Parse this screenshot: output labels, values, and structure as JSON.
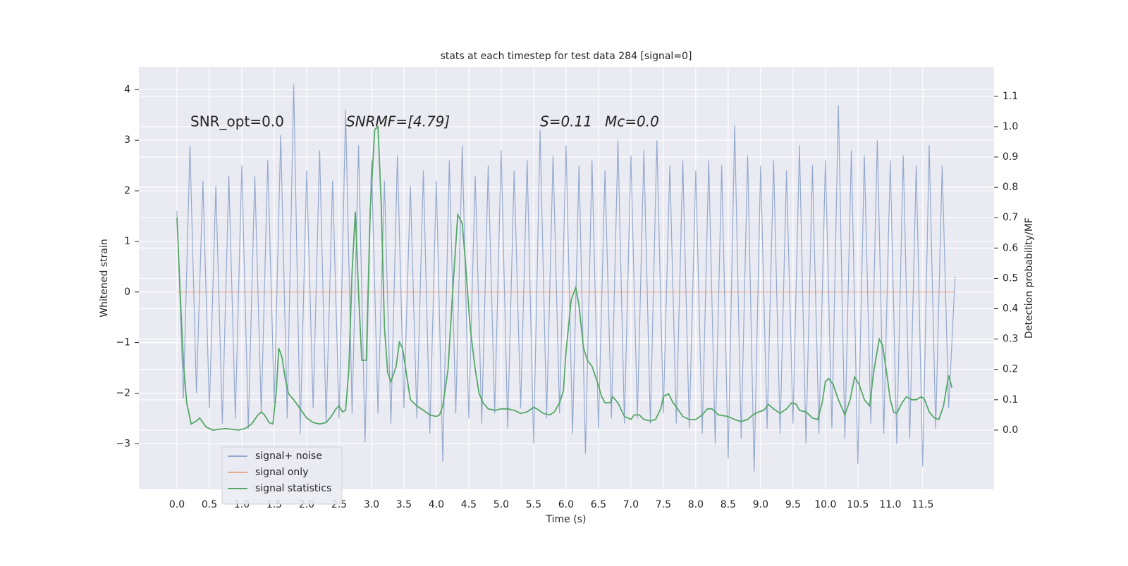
{
  "chart_data": {
    "type": "line",
    "title": "stats at each timestep for test data 284 [signal=0]",
    "xlabel": "Time (s)",
    "ylabel": "Whitened strain",
    "y2label": "Detection probability/MF",
    "annotations": [
      "SNR_opt=0.0",
      "SNRMF=[4.79]",
      "S=0.11",
      "Mc=0.0"
    ],
    "xlim": [
      -0.587,
      12.6
    ],
    "ylim": [
      -3.9,
      4.45
    ],
    "y2lim": [
      -0.195,
      1.197
    ],
    "xticks": [
      {
        "value": 0,
        "label": "0.0"
      },
      {
        "value": 0.5,
        "label": "0.5"
      },
      {
        "value": 1,
        "label": "1.0"
      },
      {
        "value": 1.5,
        "label": "1.5"
      },
      {
        "value": 2,
        "label": "2.0"
      },
      {
        "value": 2.5,
        "label": "2.5"
      },
      {
        "value": 3,
        "label": "3.0"
      },
      {
        "value": 3.5,
        "label": "3.5"
      },
      {
        "value": 4,
        "label": "4.0"
      },
      {
        "value": 4.5,
        "label": "4.5"
      },
      {
        "value": 5,
        "label": "5.0"
      },
      {
        "value": 5.5,
        "label": "5.5"
      },
      {
        "value": 6,
        "label": "6.0"
      },
      {
        "value": 6.5,
        "label": "6.5"
      },
      {
        "value": 7,
        "label": "7.0"
      },
      {
        "value": 7.5,
        "label": "7.5"
      },
      {
        "value": 8,
        "label": "8.0"
      },
      {
        "value": 8.5,
        "label": "8.5"
      },
      {
        "value": 9,
        "label": "9.0"
      },
      {
        "value": 9.5,
        "label": "9.5"
      },
      {
        "value": 10,
        "label": "10.0"
      },
      {
        "value": 10.5,
        "label": "10.5"
      },
      {
        "value": 11,
        "label": "11.0"
      },
      {
        "value": 11.5,
        "label": "11.5"
      }
    ],
    "yticks": [
      {
        "value": -3,
        "label": "−3"
      },
      {
        "value": -2,
        "label": "−2"
      },
      {
        "value": -1,
        "label": "−1"
      },
      0,
      1,
      2,
      3,
      4
    ],
    "y2ticks": [
      {
        "value": 0,
        "label": "0.0"
      },
      {
        "value": 0.1,
        "label": "0.1"
      },
      {
        "value": 0.2,
        "label": "0.2"
      },
      {
        "value": 0.3,
        "label": "0.3"
      },
      {
        "value": 0.4,
        "label": "0.4"
      },
      {
        "value": 0.5,
        "label": "0.5"
      },
      {
        "value": 0.6,
        "label": "0.6"
      },
      {
        "value": 0.7,
        "label": "0.7"
      },
      {
        "value": 0.8,
        "label": "0.8"
      },
      {
        "value": 0.9,
        "label": "0.9"
      },
      {
        "value": 1.0,
        "label": "1.0"
      },
      {
        "value": 1.1,
        "label": "1.1"
      }
    ],
    "grid": true,
    "legend_loc": "lower left",
    "series": [
      {
        "name": "signal+ noise",
        "color": "#4c72b0",
        "x": [
          0,
          0.1,
          0.2,
          0.3,
          0.4,
          0.5,
          0.6,
          0.7,
          0.8,
          0.9,
          1,
          1.1,
          1.2,
          1.3,
          1.4,
          1.5,
          1.6,
          1.7,
          1.8,
          1.9,
          2,
          2.1,
          2.2,
          2.3,
          2.4,
          2.5,
          2.6,
          2.7,
          2.8,
          2.9,
          3,
          3.1,
          3.2,
          3.3,
          3.4,
          3.5,
          3.6,
          3.7,
          3.8,
          3.9,
          4,
          4.1,
          4.2,
          4.3,
          4.4,
          4.5,
          4.6,
          4.7,
          4.8,
          4.9,
          5,
          5.1,
          5.2,
          5.3,
          5.4,
          5.5,
          5.6,
          5.7,
          5.8,
          5.9,
          6,
          6.1,
          6.2,
          6.3,
          6.4,
          6.5,
          6.6,
          6.7,
          6.8,
          6.9,
          7,
          7.1,
          7.2,
          7.3,
          7.4,
          7.5,
          7.6,
          7.7,
          7.8,
          7.9,
          8,
          8.1,
          8.2,
          8.3,
          8.4,
          8.5,
          8.6,
          8.7,
          8.8,
          8.9,
          9,
          9.1,
          9.2,
          9.3,
          9.4,
          9.5,
          9.6,
          9.7,
          9.8,
          9.9,
          10,
          10.1,
          10.2,
          10.3,
          10.4,
          10.5,
          10.6,
          10.7,
          10.8,
          10.9,
          11,
          11.1,
          11.2,
          11.3,
          11.4,
          11.5,
          11.6,
          11.7,
          11.8,
          11.9,
          12
        ],
        "values": [
          1.6,
          -2.1,
          2.9,
          -2.0,
          2.2,
          -2.3,
          2.1,
          -2.6,
          2.3,
          -2.5,
          2.5,
          -2.7,
          2.3,
          -2.4,
          2.6,
          -2.2,
          3.1,
          -2.5,
          4.1,
          -2.8,
          2.4,
          -2.3,
          2.8,
          -2.6,
          2.2,
          -2.5,
          3.6,
          -2.4,
          2.9,
          -2.97,
          2.6,
          -2.4,
          2.2,
          -2.6,
          2.7,
          -2.3,
          2.1,
          -2.5,
          2.4,
          -2.8,
          2.2,
          -3.35,
          2.6,
          -2.4,
          2.9,
          -2.5,
          2.3,
          -2.6,
          2.5,
          -2.4,
          2.8,
          -2.7,
          2.4,
          -2.3,
          2.6,
          -3.0,
          3.2,
          -2.5,
          2.7,
          -2.4,
          2.9,
          -2.8,
          2.5,
          -3.2,
          2.6,
          -2.7,
          2.4,
          -2.5,
          3.0,
          -2.6,
          2.7,
          -2.5,
          2.8,
          -2.6,
          3.0,
          -2.4,
          2.5,
          -2.6,
          2.6,
          -2.7,
          2.4,
          -2.8,
          2.6,
          -3.0,
          2.5,
          -3.3,
          3.3,
          -2.9,
          2.7,
          -3.55,
          2.5,
          -2.7,
          2.6,
          -2.8,
          2.4,
          -2.6,
          2.9,
          -3.0,
          2.5,
          -2.8,
          2.6,
          -2.7,
          3.7,
          -2.9,
          2.8,
          -3.4,
          2.7,
          -2.6,
          3.0,
          -2.8,
          2.6,
          -3.0,
          2.7,
          -2.9,
          2.5,
          -3.45,
          2.9,
          -2.7,
          2.5,
          -2.3,
          0.3
        ]
      },
      {
        "name": "signal only",
        "color": "#dd8452",
        "x": [
          0,
          12
        ],
        "values": [
          0,
          0
        ]
      },
      {
        "name": "signal statistics",
        "color": "#55a868",
        "axis": "y2",
        "x": [
          0,
          0.05,
          0.1,
          0.15,
          0.22,
          0.3,
          0.35,
          0.45,
          0.55,
          0.75,
          0.95,
          1.05,
          1.15,
          1.25,
          1.3,
          1.35,
          1.42,
          1.48,
          1.53,
          1.57,
          1.62,
          1.67,
          1.72,
          1.8,
          1.9,
          2.0,
          2.1,
          2.2,
          2.3,
          2.38,
          2.45,
          2.5,
          2.55,
          2.6,
          2.65,
          2.7,
          2.75,
          2.8,
          2.85,
          2.92,
          2.98,
          3.05,
          3.1,
          3.15,
          3.2,
          3.25,
          3.3,
          3.38,
          3.43,
          3.48,
          3.55,
          3.6,
          3.7,
          3.8,
          3.9,
          4.0,
          4.05,
          4.1,
          4.18,
          4.25,
          4.33,
          4.4,
          4.45,
          4.52,
          4.6,
          4.66,
          4.72,
          4.8,
          4.9,
          5.0,
          5.1,
          5.2,
          5.3,
          5.4,
          5.5,
          5.55,
          5.65,
          5.75,
          5.82,
          5.9,
          5.96,
          6.0,
          6.08,
          6.15,
          6.2,
          6.27,
          6.33,
          6.4,
          6.48,
          6.55,
          6.6,
          6.68,
          6.72,
          6.8,
          6.9,
          7.0,
          7.05,
          7.13,
          7.2,
          7.3,
          7.38,
          7.46,
          7.5,
          7.58,
          7.65,
          7.72,
          7.8,
          7.9,
          8.0,
          8.1,
          8.18,
          8.25,
          8.35,
          8.5,
          8.6,
          8.7,
          8.8,
          8.88,
          8.97,
          9.05,
          9.12,
          9.2,
          9.3,
          9.4,
          9.48,
          9.55,
          9.6,
          9.7,
          9.8,
          9.88,
          9.95,
          10.0,
          10.05,
          10.12,
          10.2,
          10.3,
          10.38,
          10.45,
          10.52,
          10.6,
          10.68,
          10.75,
          10.83,
          10.88,
          10.95,
          11.0,
          11.05,
          11.1,
          11.18,
          11.25,
          11.33,
          11.4,
          11.48,
          11.53,
          11.6,
          11.68,
          11.75,
          11.82,
          11.9,
          11.95
        ],
        "values": [
          0.7,
          0.45,
          0.22,
          0.09,
          0.02,
          0.03,
          0.04,
          0.01,
          0.0,
          0.005,
          0.0,
          0.005,
          0.02,
          0.05,
          0.06,
          0.05,
          0.025,
          0.02,
          0.12,
          0.27,
          0.24,
          0.17,
          0.12,
          0.1,
          0.07,
          0.04,
          0.025,
          0.02,
          0.025,
          0.045,
          0.07,
          0.08,
          0.06,
          0.065,
          0.2,
          0.52,
          0.72,
          0.45,
          0.23,
          0.23,
          0.72,
          0.99,
          1.0,
          0.75,
          0.34,
          0.19,
          0.16,
          0.21,
          0.29,
          0.27,
          0.17,
          0.1,
          0.08,
          0.065,
          0.05,
          0.045,
          0.05,
          0.08,
          0.2,
          0.45,
          0.71,
          0.68,
          0.55,
          0.34,
          0.2,
          0.12,
          0.09,
          0.07,
          0.065,
          0.07,
          0.07,
          0.065,
          0.055,
          0.06,
          0.075,
          0.07,
          0.055,
          0.05,
          0.06,
          0.09,
          0.13,
          0.26,
          0.43,
          0.47,
          0.41,
          0.27,
          0.23,
          0.21,
          0.16,
          0.11,
          0.09,
          0.09,
          0.11,
          0.09,
          0.045,
          0.035,
          0.05,
          0.05,
          0.035,
          0.03,
          0.035,
          0.07,
          0.11,
          0.12,
          0.09,
          0.07,
          0.045,
          0.035,
          0.035,
          0.05,
          0.07,
          0.07,
          0.05,
          0.045,
          0.035,
          0.028,
          0.035,
          0.05,
          0.06,
          0.065,
          0.085,
          0.07,
          0.055,
          0.07,
          0.09,
          0.085,
          0.065,
          0.06,
          0.04,
          0.035,
          0.09,
          0.16,
          0.17,
          0.15,
          0.1,
          0.05,
          0.1,
          0.175,
          0.15,
          0.1,
          0.08,
          0.2,
          0.3,
          0.28,
          0.18,
          0.1,
          0.06,
          0.055,
          0.09,
          0.11,
          0.1,
          0.1,
          0.11,
          0.1,
          0.06,
          0.04,
          0.035,
          0.08,
          0.18,
          0.14
        ]
      }
    ]
  }
}
